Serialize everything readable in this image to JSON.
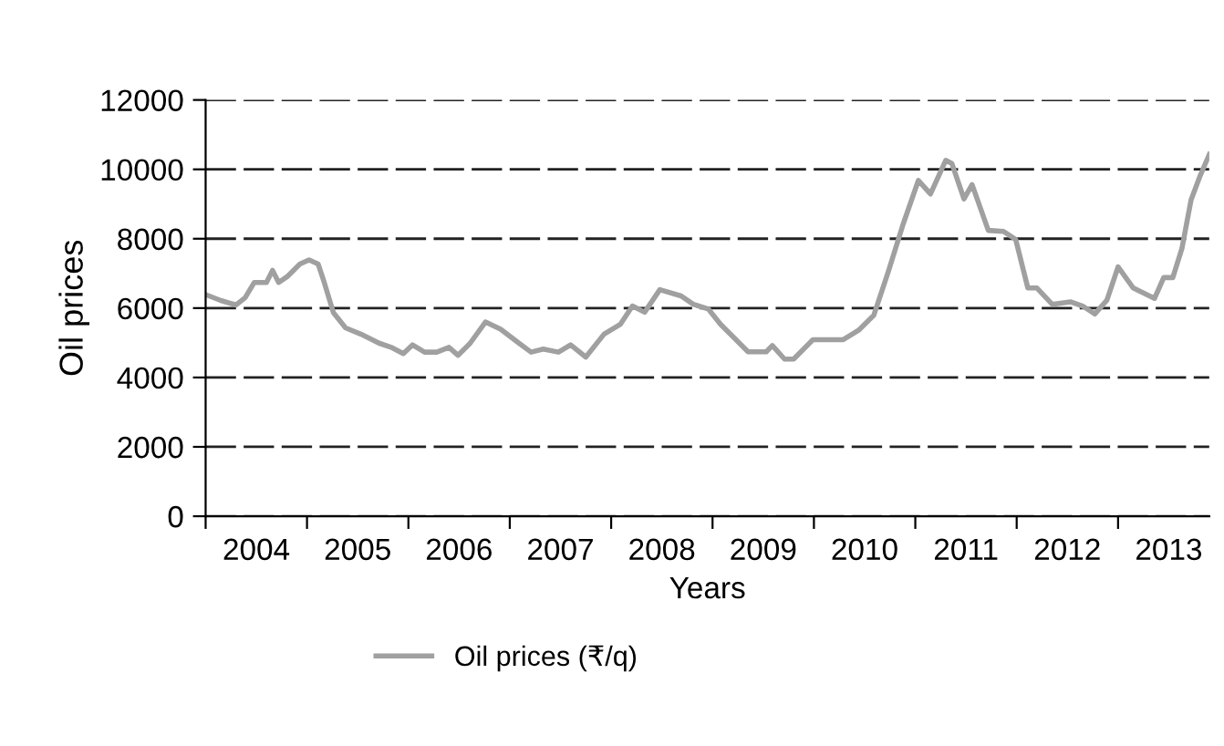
{
  "chart_data": {
    "type": "line",
    "xlabel": "Years",
    "ylabel": "Oil prices",
    "series": [
      {
        "name": "Oil prices (₹/q)",
        "color": "#a0a0a0",
        "x": [
          2004.0,
          2004.15,
          2004.3,
          2004.39,
          2004.48,
          2004.6,
          2004.66,
          2004.72,
          2004.81,
          2004.93,
          2005.02,
          2005.11,
          2005.17,
          2005.26,
          2005.38,
          2005.53,
          2005.71,
          2005.83,
          2005.95,
          2006.04,
          2006.16,
          2006.28,
          2006.4,
          2006.49,
          2006.61,
          2006.76,
          2006.91,
          2007.09,
          2007.21,
          2007.33,
          2007.48,
          2007.6,
          2007.75,
          2007.93,
          2008.09,
          2008.21,
          2008.33,
          2008.48,
          2008.69,
          2008.81,
          2008.96,
          2009.08,
          2009.2,
          2009.35,
          2009.53,
          2009.59,
          2009.71,
          2009.8,
          2009.99,
          2010.29,
          2010.44,
          2010.59,
          2010.73,
          2010.88,
          2011.03,
          2011.15,
          2011.3,
          2011.36,
          2011.48,
          2011.56,
          2011.72,
          2011.87,
          2011.99,
          2012.11,
          2012.2,
          2012.35,
          2012.53,
          2012.65,
          2012.77,
          2012.89,
          2013.0,
          2013.15,
          2013.36,
          2013.45,
          2013.54,
          2013.63,
          2013.72,
          2013.81,
          2013.9
        ],
        "values": [
          6390,
          6220,
          6090,
          6300,
          6740,
          6740,
          7090,
          6740,
          6920,
          7270,
          7390,
          7270,
          6740,
          5870,
          5430,
          5250,
          4990,
          4870,
          4690,
          4940,
          4730,
          4730,
          4870,
          4640,
          4990,
          5600,
          5390,
          4990,
          4730,
          4820,
          4730,
          4940,
          4590,
          5250,
          5530,
          6060,
          5880,
          6530,
          6350,
          6110,
          5970,
          5530,
          5180,
          4740,
          4740,
          4920,
          4530,
          4530,
          5090,
          5090,
          5360,
          5790,
          7020,
          8420,
          9680,
          9290,
          10260,
          10170,
          9150,
          9560,
          8240,
          8210,
          7980,
          6580,
          6580,
          6110,
          6180,
          6060,
          5830,
          6230,
          7190,
          6580,
          6280,
          6880,
          6880,
          7720,
          9120,
          9820,
          10430
        ]
      }
    ],
    "xlim": [
      2004,
      2013.9
    ],
    "xticks": [
      {
        "value": 2004,
        "label": null
      },
      {
        "value": 2004.5,
        "label": "2004"
      },
      {
        "value": 2005,
        "label": null
      },
      {
        "value": 2005.5,
        "label": "2005"
      },
      {
        "value": 2006,
        "label": null
      },
      {
        "value": 2006.5,
        "label": "2006"
      },
      {
        "value": 2007,
        "label": null
      },
      {
        "value": 2007.5,
        "label": "2007"
      },
      {
        "value": 2008,
        "label": null
      },
      {
        "value": 2008.5,
        "label": "2008"
      },
      {
        "value": 2009,
        "label": null
      },
      {
        "value": 2009.5,
        "label": "2009"
      },
      {
        "value": 2010,
        "label": null
      },
      {
        "value": 2010.5,
        "label": "2010"
      },
      {
        "value": 2011,
        "label": null
      },
      {
        "value": 2011.5,
        "label": "2011"
      },
      {
        "value": 2012,
        "label": null
      },
      {
        "value": 2012.5,
        "label": "2012"
      },
      {
        "value": 2013,
        "label": null
      },
      {
        "value": 2013.5,
        "label": "2013"
      }
    ],
    "ylim": [
      0,
      12000
    ],
    "yticks": [
      0,
      2000,
      4000,
      6000,
      8000,
      10000,
      12000
    ],
    "grid": "y",
    "legend": "bottom",
    "marker": "none",
    "line_style": "solid"
  }
}
